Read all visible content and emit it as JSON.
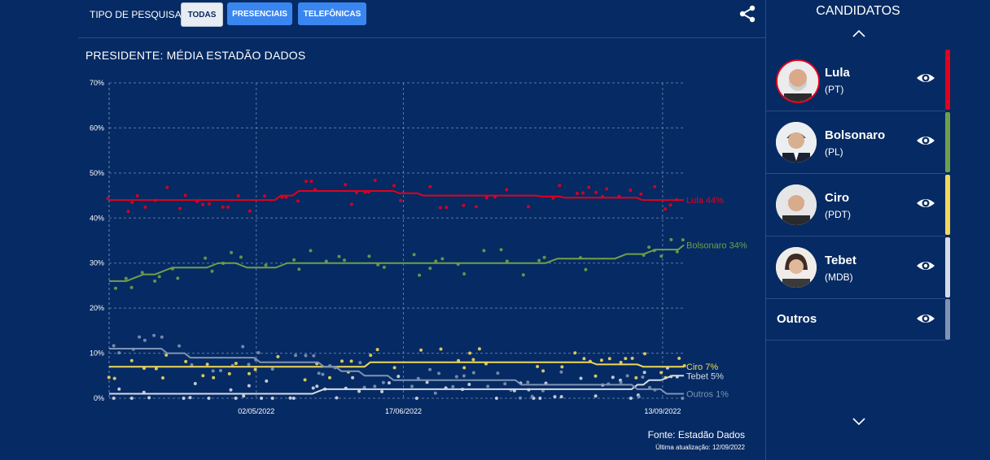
{
  "filters": {
    "label": "TIPO DE PESQUISA:",
    "buttons": [
      "TODAS",
      "PRESENCIAIS",
      "TELEFÔNICAS"
    ]
  },
  "sidebar": {
    "title": "CANDIDATOS",
    "candidates": [
      {
        "name": "Lula",
        "party": "(PT)",
        "color": "#e3001b"
      },
      {
        "name": "Bolsonaro",
        "party": "(PL)",
        "color": "#6fa049"
      },
      {
        "name": "Ciro",
        "party": "(PDT)",
        "color": "#f0d85a"
      },
      {
        "name": "Tebet",
        "party": "(MDB)",
        "color": "#d5dbe6"
      }
    ],
    "others": {
      "name": "Outros",
      "color": "#7f93b4"
    }
  },
  "footer": {
    "source": "Fonte: Estadão Dados",
    "updated": "Última atualização: 12/09/2022"
  },
  "chart_data": {
    "type": "line",
    "title": "PRESIDENTE: MÉDIA ESTADÃO DADOS",
    "ylim": [
      0,
      70
    ],
    "y_ticks": [
      "0%",
      "10%",
      "20%",
      "30%",
      "40%",
      "50%",
      "60%",
      "70%"
    ],
    "x_ticks": [
      "02/05/2022",
      "17/06/2022",
      "13/09/2022"
    ],
    "x_tick_pos": [
      0.256,
      0.512,
      0.963
    ],
    "grid": true,
    "series": [
      {
        "name": "Lula",
        "label": "Lula 44%",
        "color": "#e3001b",
        "values": [
          44,
          44,
          44,
          44,
          44,
          44,
          44,
          44,
          44,
          44,
          44,
          44,
          44,
          44,
          44,
          44,
          44,
          44,
          44,
          44,
          44,
          44,
          44,
          44,
          44,
          44,
          44,
          44,
          44,
          45,
          45,
          45,
          46,
          46,
          46,
          46,
          46,
          46,
          46,
          46,
          46,
          46,
          46,
          46,
          46,
          46,
          46,
          46,
          46,
          45.5,
          45.5,
          45.5,
          45.5,
          45,
          45,
          45,
          45,
          45,
          45,
          45,
          45,
          45,
          45,
          45,
          45,
          45,
          45,
          45,
          45,
          45,
          45,
          45,
          45,
          44.8,
          44.8,
          44.8,
          44.8,
          44.5,
          44.5,
          44.5,
          44.5,
          44.5,
          44.5,
          44.5,
          44.5,
          44.5,
          44.5,
          44.5,
          44.5,
          44.5,
          44,
          44,
          44,
          44,
          44,
          44,
          44,
          44
        ]
      },
      {
        "name": "Bolsonaro",
        "label": "Bolsonaro 34%",
        "color": "#6fa049",
        "values": [
          26,
          26,
          26,
          26,
          26.5,
          27,
          27.5,
          27.5,
          27.5,
          28,
          28.5,
          29,
          29,
          29,
          29,
          29,
          29,
          29,
          29.5,
          30,
          30,
          30,
          30,
          29.5,
          29,
          29,
          29,
          29,
          29,
          29,
          29.5,
          30,
          30,
          30,
          30,
          30,
          30,
          30,
          30,
          30,
          30,
          30,
          30,
          30,
          30,
          30,
          30,
          30,
          30,
          30,
          30,
          30,
          30,
          30,
          30,
          30,
          30,
          30,
          30,
          30,
          30,
          30,
          30,
          30,
          30,
          30,
          30,
          30,
          30,
          30,
          30,
          30,
          30,
          30,
          30,
          30,
          30,
          30.5,
          31,
          31,
          31,
          31,
          31,
          31,
          31,
          31,
          31,
          31,
          31,
          31.5,
          32,
          32,
          32,
          32,
          32.5,
          33,
          33,
          33,
          33,
          33,
          34
        ]
      },
      {
        "name": "Ciro",
        "label": "Ciro 7%",
        "color": "#f0d85a",
        "values": [
          7,
          7,
          7,
          7,
          7,
          7,
          7,
          7,
          7,
          7,
          7,
          7,
          7,
          7,
          7,
          7,
          7,
          7,
          7,
          7,
          7,
          7,
          7,
          7,
          7,
          7,
          7,
          7,
          7,
          7,
          7,
          7,
          7,
          7,
          7,
          7,
          7,
          7,
          7,
          7,
          7,
          7,
          7,
          7,
          7,
          8,
          8,
          8,
          8,
          8,
          8,
          8,
          8,
          8,
          8,
          8,
          8,
          8,
          8,
          8,
          8,
          8,
          8,
          8,
          8,
          8,
          8,
          8,
          8,
          8,
          8,
          8,
          8,
          8,
          8,
          8,
          8,
          8,
          8,
          8,
          8,
          8,
          8,
          8,
          7.5,
          7.5,
          7.5,
          7.5,
          7.5,
          7.5,
          7.5,
          7.5,
          7,
          7,
          7,
          7,
          7,
          7,
          7,
          7
        ]
      },
      {
        "name": "Tebet",
        "label": "Tebet 5%",
        "color": "#d5dbe6",
        "values": [
          1,
          1,
          1,
          1,
          1,
          1,
          1,
          1,
          1,
          1,
          1,
          1,
          1,
          1,
          1,
          1,
          1,
          1,
          1,
          1,
          1,
          1,
          1,
          1,
          1,
          1,
          1,
          1,
          1,
          1,
          1,
          1,
          1,
          1,
          1,
          1,
          1.5,
          2,
          2,
          2,
          2,
          2,
          2,
          2,
          2,
          2,
          2,
          2,
          2,
          2,
          2,
          2,
          2,
          2,
          2,
          2,
          2,
          2,
          2,
          2,
          2,
          2,
          2,
          2,
          2,
          2,
          2,
          2,
          2,
          2,
          2,
          2,
          2,
          2,
          2,
          2,
          2,
          2,
          2,
          2,
          2,
          2,
          2,
          2,
          2,
          2,
          2,
          2,
          2,
          2,
          2,
          3,
          3,
          4,
          4,
          4,
          4.5,
          5,
          5,
          5
        ]
      },
      {
        "name": "Outros",
        "label": "Outros 1%",
        "color": "#7f93b4",
        "values": [
          11,
          11,
          11,
          11,
          11,
          11,
          11,
          11,
          11,
          11,
          10,
          10,
          10,
          10,
          9,
          9,
          9,
          9,
          9,
          9,
          9,
          9,
          9,
          9,
          9,
          9,
          8,
          8,
          8,
          8,
          8,
          8,
          8,
          8,
          8,
          8,
          8,
          7,
          7,
          7,
          6,
          6,
          6,
          6,
          5,
          5,
          5,
          5,
          5,
          4,
          4,
          4,
          4,
          4,
          4,
          4,
          4,
          4,
          4,
          4,
          4,
          4,
          4,
          4,
          4,
          4,
          4,
          4,
          4,
          4,
          4,
          3,
          3,
          3,
          3,
          3,
          3,
          3,
          3,
          3,
          3,
          3,
          3,
          3,
          3,
          3,
          3,
          3,
          3,
          3,
          3,
          2,
          2,
          2,
          2,
          2,
          1,
          1,
          1,
          1
        ]
      }
    ]
  }
}
